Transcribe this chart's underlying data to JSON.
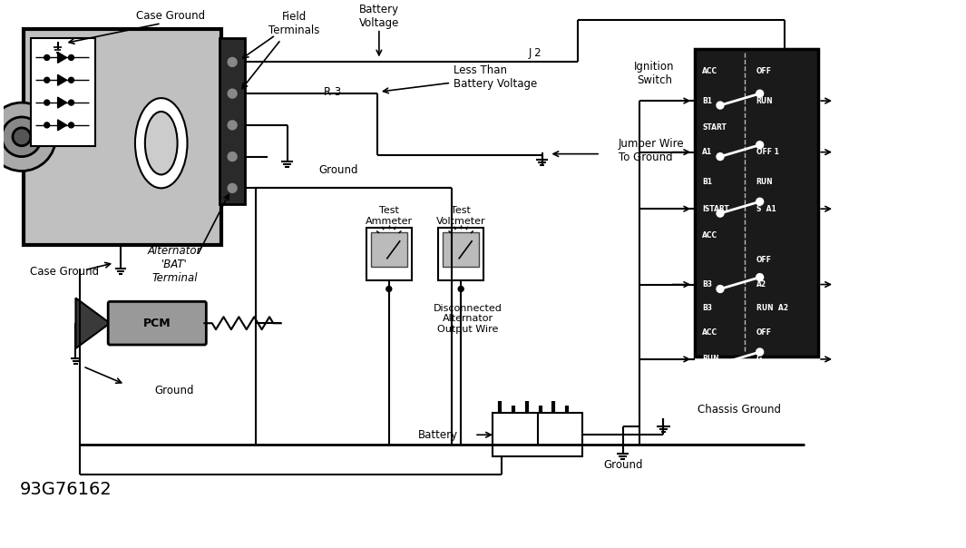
{
  "bg_color": "#ffffff",
  "diagram_id": "93G76162",
  "labels": {
    "case_ground_top": "Case Ground",
    "field_terminals": "Field\nTerminals",
    "battery_voltage": "Battery\nVoltage",
    "j2": "J 2",
    "r3": "R 3",
    "less_than_battery": "Less Than\nBattery Voltage",
    "ground_mid": "Ground",
    "case_ground_bot": "Case Ground",
    "alt_bat_terminal": "Alternator\n'BAT'\nTerminal",
    "test_ammeter": "Test\nAmmeter",
    "test_voltmeter": "Test\nVoltmeter",
    "disconnected": "Disconnected\nAlternator\nOutput Wire",
    "jumper_wire": "Jumper Wire\nTo Ground",
    "ignition_switch": "Ignition\nSwitch",
    "pcm": "PCM",
    "ground_bot": "Ground",
    "battery": "Battery",
    "chassis_ground": "Chassis Ground",
    "ground_switch": "Ground"
  }
}
